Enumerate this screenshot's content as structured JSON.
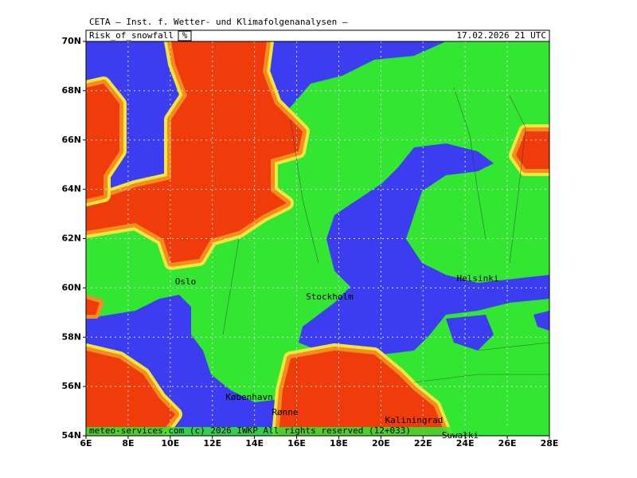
{
  "header": {
    "title": "CETA — Inst. f. Wetter- und Klimafolgenanalysen —",
    "parameter": "Risk_of_snowfall",
    "unit": "%",
    "valid_time": "17.02.2026 21 UTC"
  },
  "axes": {
    "latitude_labels": [
      "70N",
      "68N",
      "66N",
      "64N",
      "62N",
      "60N",
      "58N",
      "56N",
      "54N"
    ],
    "longitude_labels": [
      "6E",
      "8E",
      "10E",
      "12E",
      "14E",
      "16E",
      "18E",
      "20E",
      "22E",
      "24E",
      "26E",
      "28E"
    ]
  },
  "places": [
    "Oslo",
    "Stockholm",
    "Helsinki",
    "København",
    "Rønne",
    "Kaliningrad",
    "Suwałki"
  ],
  "footer": "meteo-services.com (c) 2026 IWKP All rights reserved (12+033)"
}
